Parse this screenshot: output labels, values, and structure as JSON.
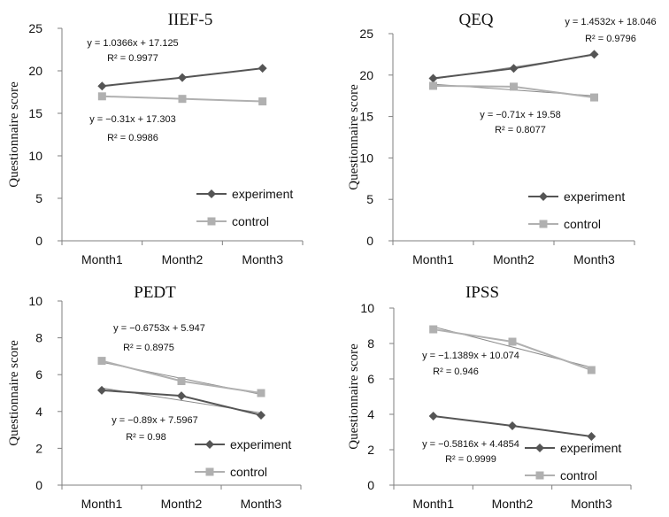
{
  "colors": {
    "experiment": "#555555",
    "control": "#b0b0b0",
    "trend": "#8a8a8a",
    "axis": "#7f7f7f"
  },
  "chart_data": [
    {
      "type": "line",
      "title": "IIEF-5",
      "ylabel": "Questionnaire score",
      "xlabel": "",
      "categories": [
        "Month1",
        "Month2",
        "Month3"
      ],
      "ylim": [
        0,
        25
      ],
      "yticks": [
        "0",
        "5",
        "10",
        "15",
        "20",
        "25"
      ],
      "legend_position": "bottom-right",
      "series": [
        {
          "name": "experiment",
          "values": [
            18.2,
            19.2,
            20.3
          ],
          "marker": "diamond",
          "equation": "y = 1.0366x + 17.125",
          "r2": "R² = 0.9977"
        },
        {
          "name": "control",
          "values": [
            17.0,
            16.7,
            16.4
          ],
          "marker": "square",
          "equation": "y = −0.31x + 17.303",
          "r2": "R² = 0.9986"
        }
      ]
    },
    {
      "type": "line",
      "title": "QEQ",
      "ylabel": "Questionnaire score",
      "xlabel": "",
      "categories": [
        "Month1",
        "Month2",
        "Month3"
      ],
      "ylim": [
        0,
        25
      ],
      "yticks": [
        "0",
        "5",
        "10",
        "15",
        "20",
        "25"
      ],
      "legend_position": "bottom-right",
      "series": [
        {
          "name": "experiment",
          "values": [
            19.6,
            20.8,
            22.5
          ],
          "marker": "diamond",
          "equation": "y = 1.4532x + 18.046",
          "r2": "R² = 0.9796"
        },
        {
          "name": "control",
          "values": [
            18.7,
            18.6,
            17.3
          ],
          "marker": "square",
          "equation": "y = −0.71x + 19.58",
          "r2": "R² = 0.8077"
        }
      ]
    },
    {
      "type": "line",
      "title": "PEDT",
      "ylabel": "Questionnaire score",
      "xlabel": "",
      "categories": [
        "Month1",
        "Month2",
        "Month3"
      ],
      "ylim": [
        0,
        10
      ],
      "yticks": [
        "0",
        "2",
        "4",
        "6",
        "8",
        "10"
      ],
      "legend_position": "bottom-right",
      "series": [
        {
          "name": "experiment",
          "values": [
            5.15,
            4.85,
            3.8
          ],
          "marker": "diamond",
          "equation": "y = −0.6753x + 5.947",
          "r2": "R² = 0.8975"
        },
        {
          "name": "control",
          "values": [
            6.75,
            5.65,
            5.0
          ],
          "marker": "square",
          "equation": "y = −0.89x + 7.5967",
          "r2": "R² = 0.98"
        }
      ]
    },
    {
      "type": "line",
      "title": "IPSS",
      "ylabel": "Questionnaire score",
      "xlabel": "",
      "categories": [
        "Month1",
        "Month2",
        "Month3"
      ],
      "ylim": [
        0,
        10
      ],
      "yticks": [
        "0",
        "2",
        "4",
        "6",
        "8",
        "10"
      ],
      "legend_position": "bottom-right",
      "series": [
        {
          "name": "experiment",
          "values": [
            3.9,
            3.35,
            2.75
          ],
          "marker": "diamond",
          "equation": "y = −0.5816x + 4.4854",
          "r2": "R² = 0.9999"
        },
        {
          "name": "control",
          "values": [
            8.8,
            8.1,
            6.5
          ],
          "marker": "square",
          "equation": "y = −1.1389x + 10.074",
          "r2": "R² = 0.946"
        }
      ]
    }
  ]
}
